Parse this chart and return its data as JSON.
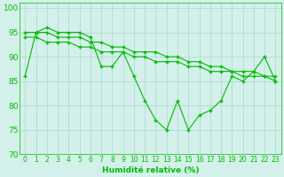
{
  "title": "",
  "xlabel": "Humidité relative (%)",
  "ylabel": "",
  "xlim": [
    -0.5,
    23.5
  ],
  "ylim": [
    70,
    101
  ],
  "yticks": [
    70,
    75,
    80,
    85,
    90,
    95,
    100
  ],
  "xticks": [
    0,
    1,
    2,
    3,
    4,
    5,
    6,
    7,
    8,
    9,
    10,
    11,
    12,
    13,
    14,
    15,
    16,
    17,
    18,
    19,
    20,
    21,
    22,
    23
  ],
  "background_color": "#d4f0eb",
  "grid_color": "#aad8cc",
  "line_color": "#00bb00",
  "series1": [
    86,
    95,
    96,
    95,
    95,
    95,
    94,
    88,
    88,
    91,
    86,
    81,
    77,
    75,
    81,
    75,
    78,
    79,
    81,
    86,
    85,
    87,
    90,
    85
  ],
  "series2": [
    95,
    95,
    95,
    94,
    94,
    94,
    93,
    93,
    92,
    92,
    91,
    91,
    91,
    90,
    90,
    89,
    89,
    88,
    88,
    87,
    87,
    87,
    86,
    86
  ],
  "series3": [
    94,
    94,
    93,
    93,
    93,
    92,
    92,
    91,
    91,
    91,
    90,
    90,
    89,
    89,
    89,
    88,
    88,
    87,
    87,
    87,
    86,
    86,
    86,
    85
  ]
}
